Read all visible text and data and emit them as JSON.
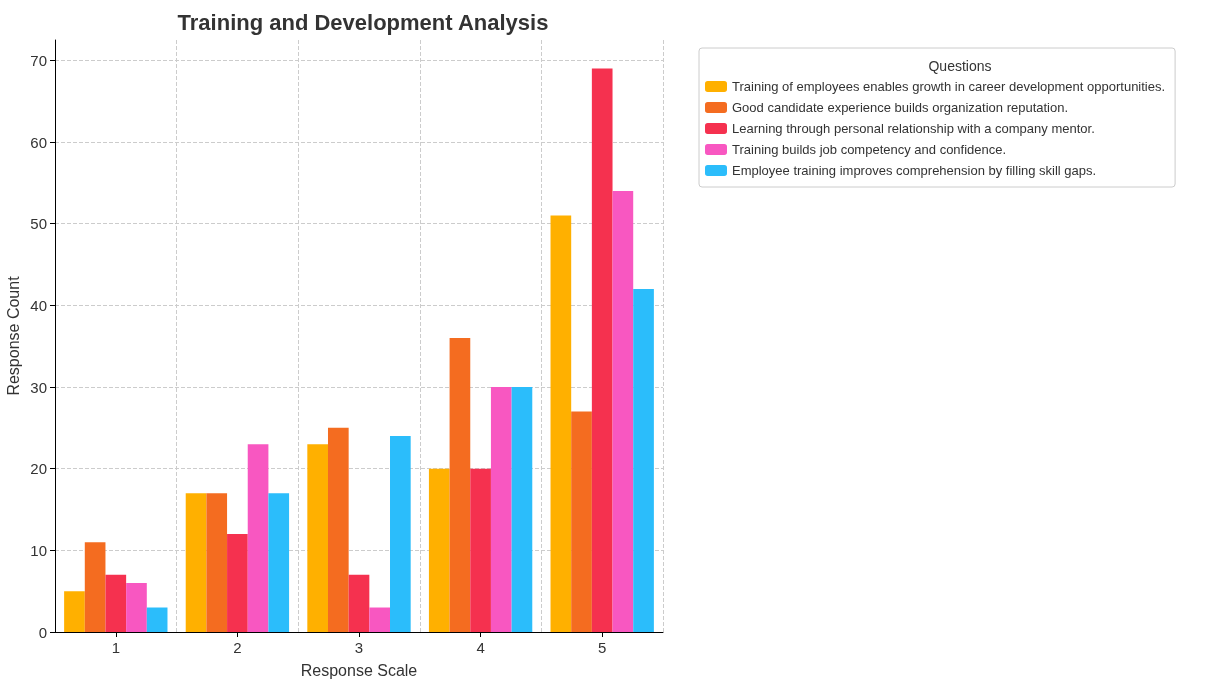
{
  "chart_data": {
    "type": "bar",
    "title": "Training and Development Analysis",
    "xlabel": "Response Scale",
    "ylabel": "Response Count",
    "legend_title": "Questions",
    "categories": [
      "1",
      "2",
      "3",
      "4",
      "5"
    ],
    "series": [
      {
        "name": "Training of employees enables growth in career development opportunities.",
        "color": "#ffb000",
        "values": [
          5,
          17,
          23,
          20,
          51
        ]
      },
      {
        "name": "Good candidate experience builds organization reputation.",
        "color": "#f46c20",
        "values": [
          11,
          17,
          25,
          36,
          27
        ]
      },
      {
        "name": "Learning through personal relationship with a company mentor.",
        "color": "#f5314f",
        "values": [
          7,
          12,
          7,
          20,
          69
        ]
      },
      {
        "name": "Training builds job competency and confidence.",
        "color": "#f857c1",
        "values": [
          6,
          23,
          3,
          30,
          54
        ]
      },
      {
        "name": "Employee training improves comprehension by filling skill gaps.",
        "color": "#2bbdfb",
        "values": [
          3,
          17,
          24,
          30,
          42
        ]
      }
    ],
    "ylim": [
      0,
      72.5
    ],
    "yticks": [
      0,
      10,
      20,
      30,
      40,
      50,
      60,
      70
    ],
    "grid": true,
    "legend": "top right"
  }
}
